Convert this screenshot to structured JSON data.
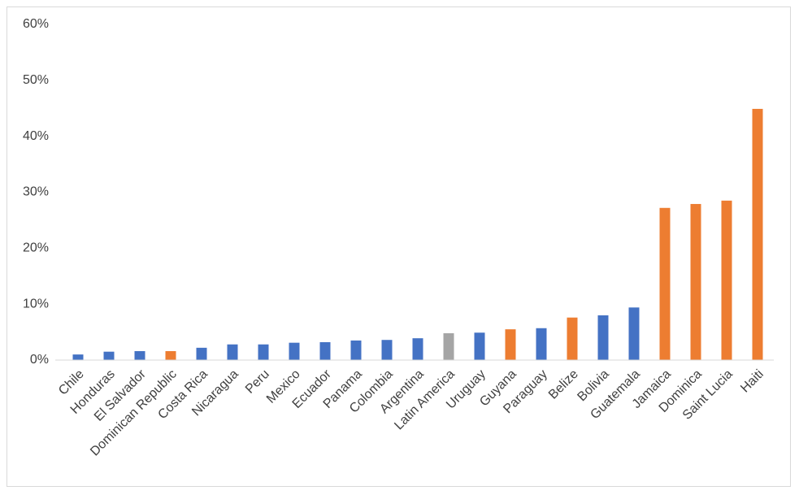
{
  "chart_data": {
    "type": "bar",
    "categories": [
      "Chile",
      "Honduras",
      "El Salvador",
      "Dominican Republic",
      "Costa Rica",
      "Nicaragua",
      "Peru",
      "Mexico",
      "Ecuador",
      "Panama",
      "Colombia",
      "Argentina",
      "Latin America",
      "Uruguay",
      "Guyana",
      "Paraguay",
      "Belize",
      "Bolivia",
      "Guatemala",
      "Jamaica",
      "Dominica",
      "Saint Lucia",
      "Haiti"
    ],
    "values": [
      1.0,
      1.5,
      1.6,
      1.6,
      2.2,
      2.8,
      2.8,
      3.1,
      3.2,
      3.5,
      3.6,
      3.9,
      4.8,
      4.9,
      5.5,
      5.7,
      7.6,
      8.0,
      9.4,
      27.2,
      27.9,
      28.5,
      44.9
    ],
    "colors": [
      "#4472c4",
      "#4472c4",
      "#4472c4",
      "#ed7d31",
      "#4472c4",
      "#4472c4",
      "#4472c4",
      "#4472c4",
      "#4472c4",
      "#4472c4",
      "#4472c4",
      "#4472c4",
      "#a5a5a5",
      "#4472c4",
      "#ed7d31",
      "#4472c4",
      "#ed7d31",
      "#4472c4",
      "#4472c4",
      "#ed7d31",
      "#ed7d31",
      "#ed7d31",
      "#ed7d31"
    ],
    "ylim": [
      0,
      60
    ],
    "yticks": [
      {
        "value": 0,
        "label": "0%"
      },
      {
        "value": 10,
        "label": "10%"
      },
      {
        "value": 20,
        "label": "20%"
      },
      {
        "value": 30,
        "label": "30%"
      },
      {
        "value": 40,
        "label": "40%"
      },
      {
        "value": 50,
        "label": "50%"
      },
      {
        "value": 60,
        "label": "60%"
      }
    ],
    "grid": false
  }
}
